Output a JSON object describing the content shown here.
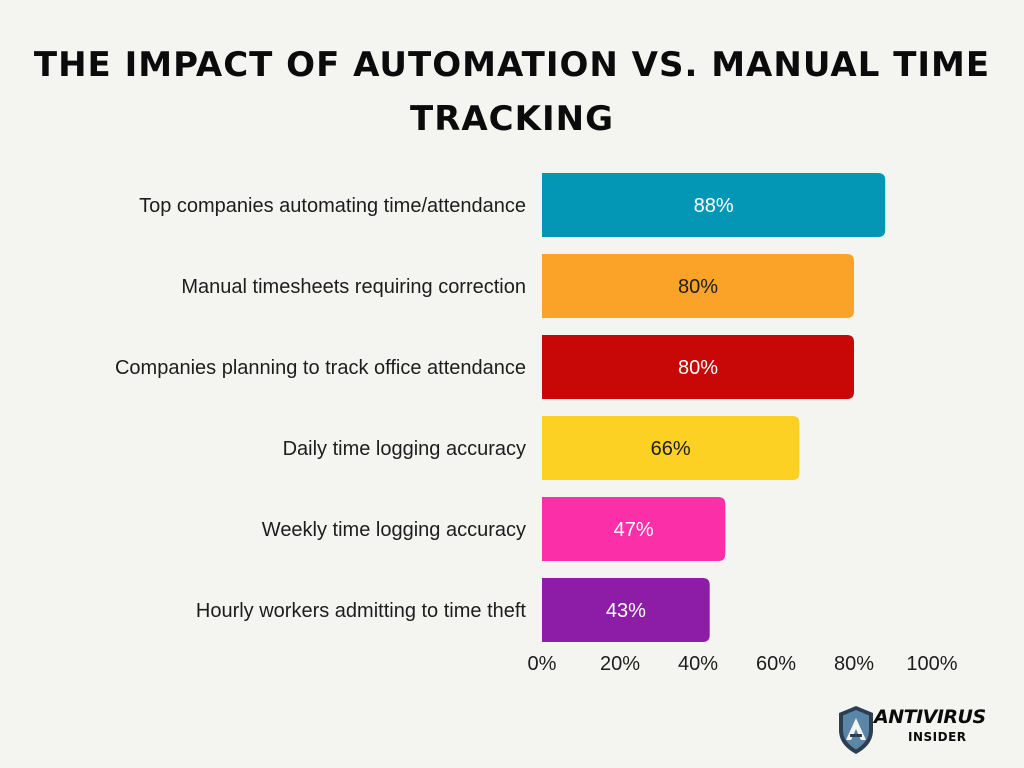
{
  "chart_data": {
    "type": "bar",
    "orientation": "horizontal",
    "title": "THE IMPACT OF AUTOMATION VS. MANUAL TIME TRACKING",
    "categories": [
      "Top companies automating time/attendance",
      "Manual timesheets requiring correction",
      "Companies planning to track office attendance",
      "Daily time logging accuracy",
      "Weekly time logging accuracy",
      "Hourly workers admitting to time theft"
    ],
    "values": [
      88,
      80,
      80,
      66,
      47,
      43
    ],
    "value_labels": [
      "88%",
      "80%",
      "80%",
      "66%",
      "47%",
      "43%"
    ],
    "bar_colors": [
      "#0497b5",
      "#fba329",
      "#c80707",
      "#fdd024",
      "#fb2fa8",
      "#8d1ca7"
    ],
    "value_label_colors": [
      "#ffffff",
      "#1d1d1d",
      "#ffffff",
      "#1d1d1d",
      "#ffffff",
      "#ffffff"
    ],
    "xlim": [
      0,
      100
    ],
    "xticks": [
      0,
      20,
      40,
      60,
      80,
      100
    ],
    "xtick_labels": [
      "0%",
      "20%",
      "40%",
      "60%",
      "80%",
      "100%"
    ],
    "grid": false,
    "legend": "none"
  },
  "logo": {
    "word": "ANTIVIRUS",
    "sub": "INSIDER",
    "colors": {
      "shield": "#5a86a8",
      "shield_dark": "#2c3e50",
      "text": "#0b0b0b"
    }
  }
}
